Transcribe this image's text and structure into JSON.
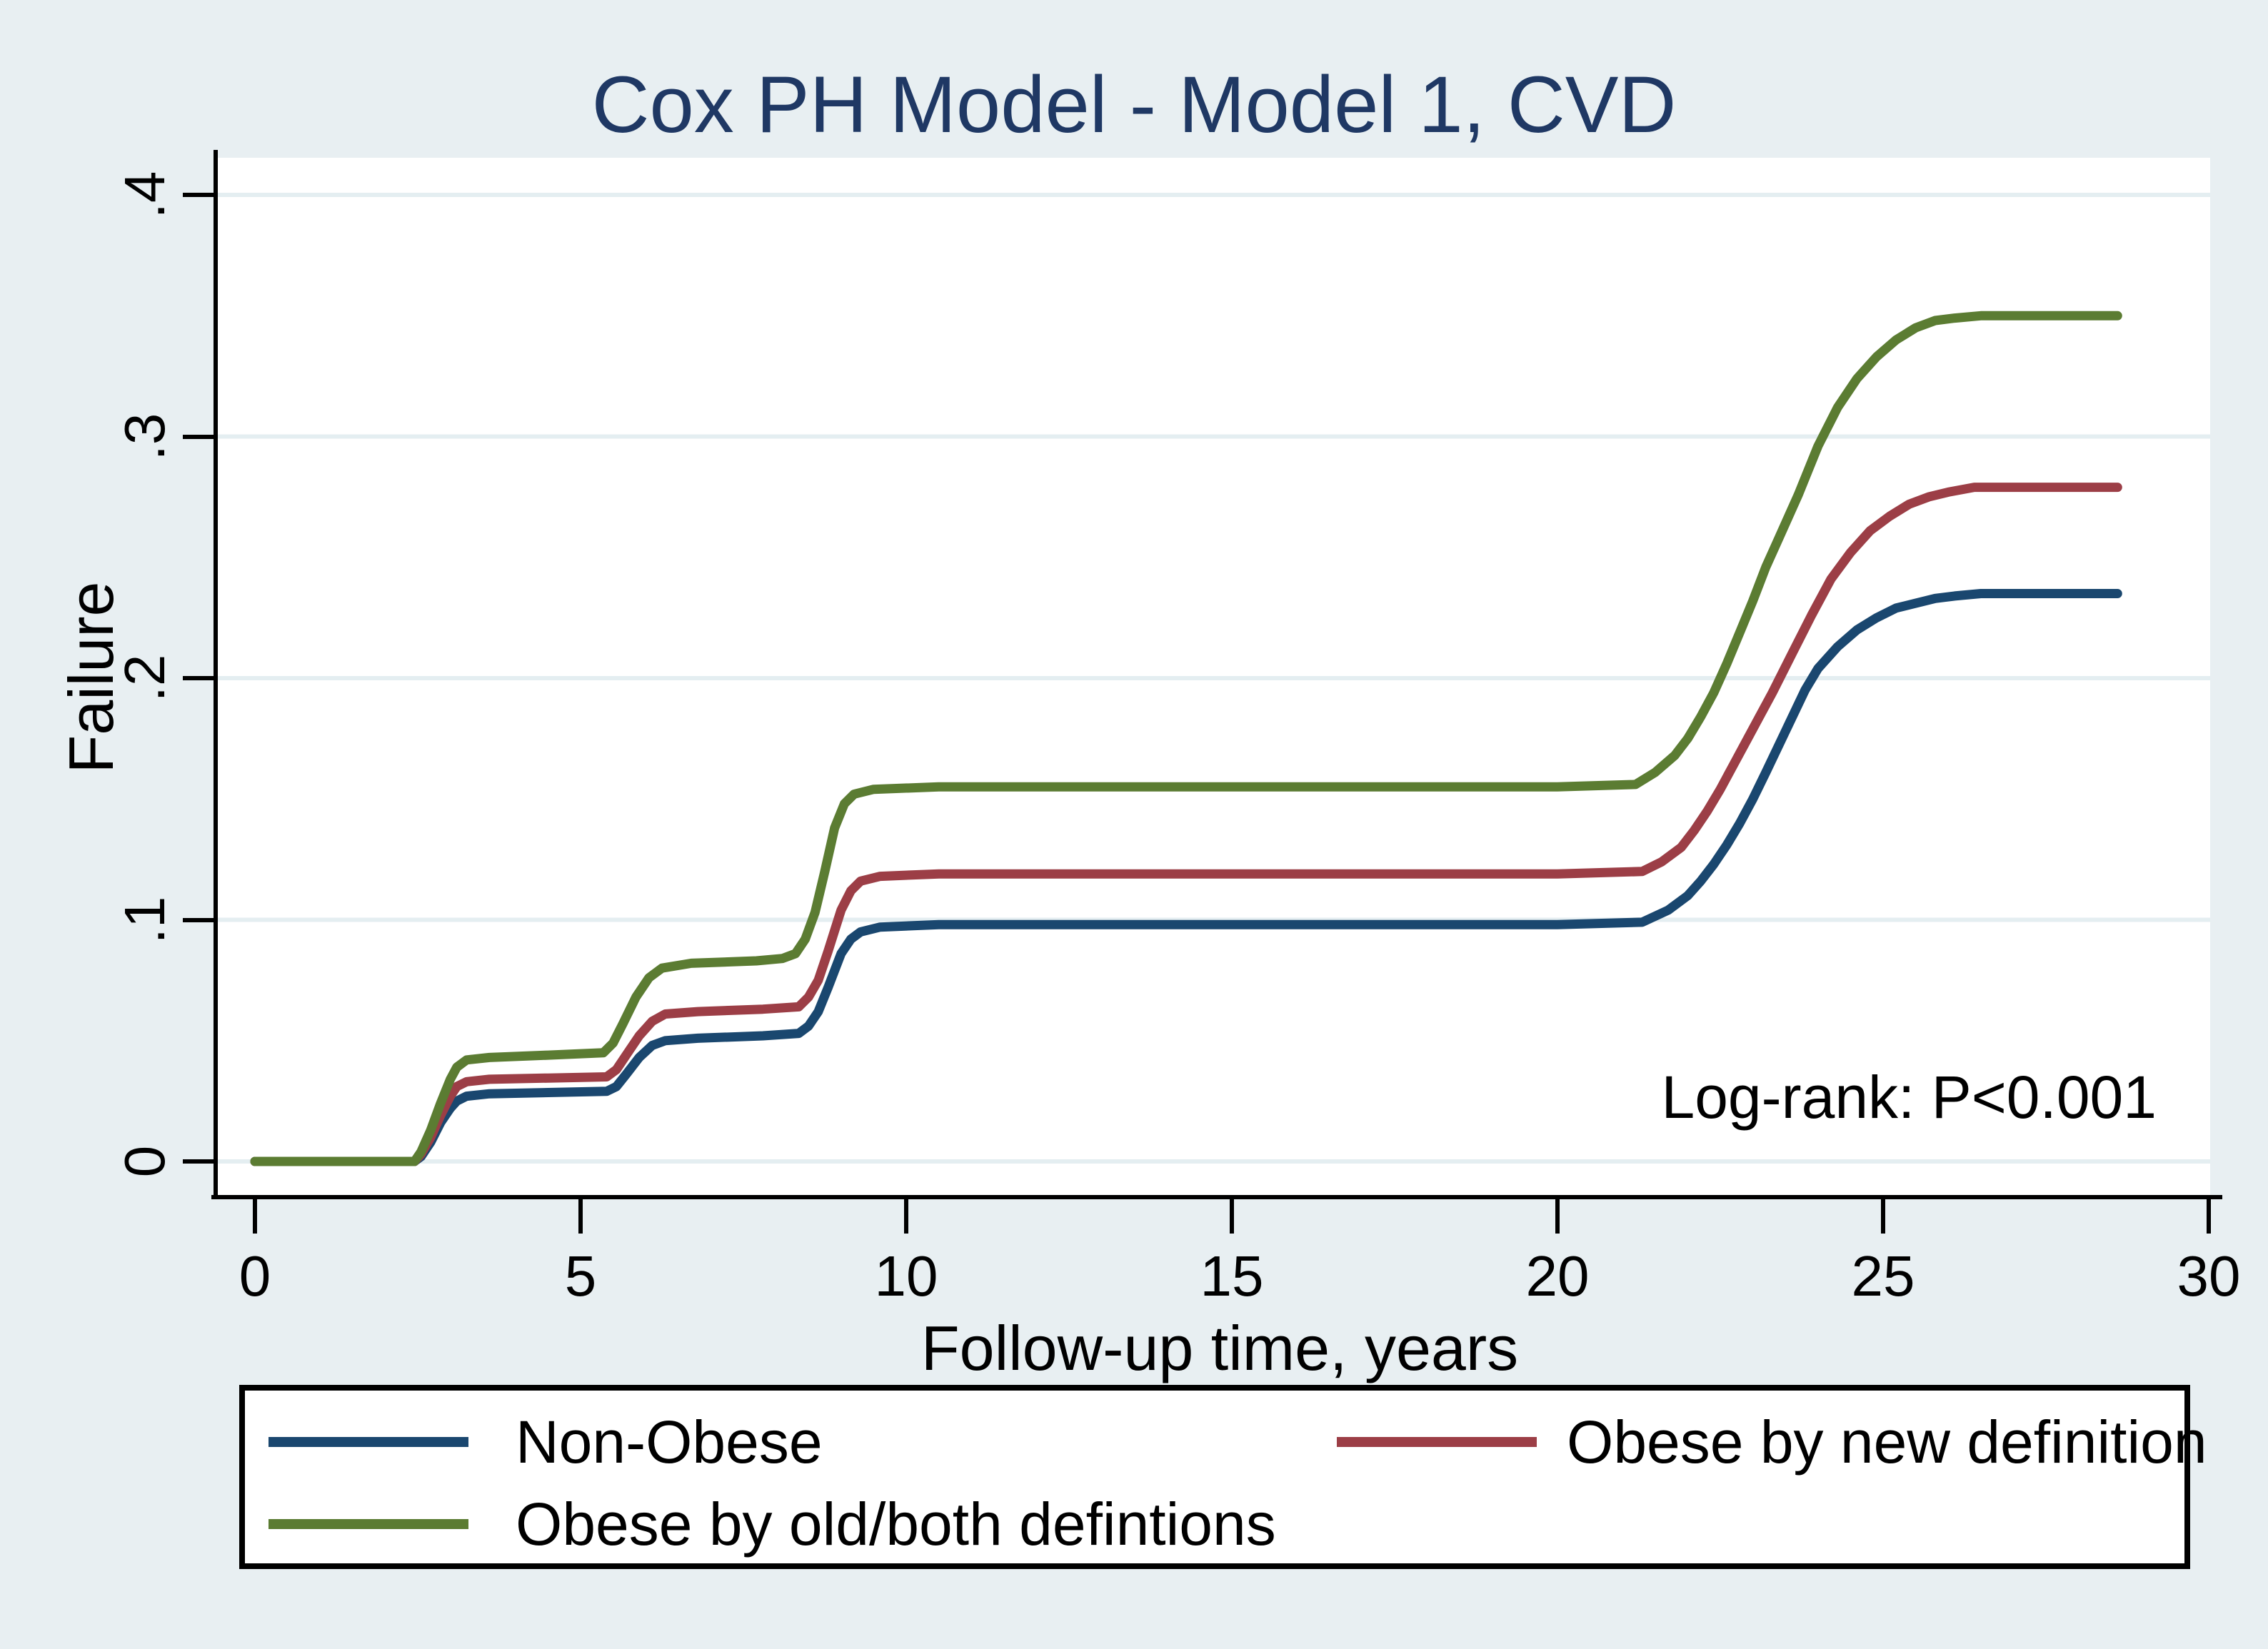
{
  "title": {
    "text": "Cox PH Model - Model 1, CVD",
    "color": "#1f3864"
  },
  "axes": {
    "y": {
      "title": "Failure",
      "tick_labels": [
        "0",
        ".1",
        ".2",
        ".3",
        ".4"
      ],
      "tick_values": [
        0,
        0.1,
        0.2,
        0.3,
        0.4
      ]
    },
    "x": {
      "title": "Follow-up time, years",
      "tick_labels": [
        "0",
        "5",
        "10",
        "15",
        "20",
        "25",
        "30"
      ],
      "tick_values": [
        0,
        5,
        10,
        15,
        20,
        25,
        30
      ]
    }
  },
  "annotation": {
    "text": "Log-rank: P<0.001"
  },
  "legend": {
    "items": [
      {
        "label": "Non-Obese",
        "color": "#1a476f"
      },
      {
        "label": "Obese by new definition",
        "color": "#9c3e46"
      },
      {
        "label": "Obese by old/both defintions",
        "color": "#5b7c32"
      }
    ]
  },
  "colors": {
    "background": "#e8eff2",
    "plot_background": "#ffffff",
    "gridline": "#e4eef1",
    "axis": "#000000",
    "title": "#1f3864"
  },
  "chart_data": {
    "type": "line",
    "title": "Cox PH Model - Model 1, CVD",
    "xlabel": "Follow-up time, years",
    "ylabel": "Failure",
    "xlim": [
      0,
      30
    ],
    "ylim": [
      0,
      0.4
    ],
    "grid": true,
    "legend_position": "bottom",
    "annotation": "Log-rank: P<0.001",
    "series": [
      {
        "name": "Non-Obese",
        "color": "#1a476f",
        "points": [
          [
            0,
            0
          ],
          [
            2.45,
            0
          ],
          [
            2.55,
            0.002
          ],
          [
            2.7,
            0.008
          ],
          [
            2.85,
            0.016
          ],
          [
            3.0,
            0.022
          ],
          [
            3.1,
            0.025
          ],
          [
            3.25,
            0.027
          ],
          [
            3.6,
            0.028
          ],
          [
            4.5,
            0.0285
          ],
          [
            5.4,
            0.029
          ],
          [
            5.55,
            0.031
          ],
          [
            5.7,
            0.036
          ],
          [
            5.9,
            0.043
          ],
          [
            6.1,
            0.048
          ],
          [
            6.3,
            0.05
          ],
          [
            6.8,
            0.051
          ],
          [
            7.8,
            0.052
          ],
          [
            8.35,
            0.053
          ],
          [
            8.5,
            0.056
          ],
          [
            8.65,
            0.062
          ],
          [
            8.8,
            0.072
          ],
          [
            9.0,
            0.086
          ],
          [
            9.15,
            0.092
          ],
          [
            9.3,
            0.095
          ],
          [
            9.6,
            0.097
          ],
          [
            10.5,
            0.098
          ],
          [
            15,
            0.098
          ],
          [
            20,
            0.098
          ],
          [
            21.3,
            0.099
          ],
          [
            21.7,
            0.104
          ],
          [
            22.0,
            0.11
          ],
          [
            22.2,
            0.116
          ],
          [
            22.4,
            0.123
          ],
          [
            22.6,
            0.131
          ],
          [
            22.8,
            0.14
          ],
          [
            23.0,
            0.15
          ],
          [
            23.2,
            0.161
          ],
          [
            23.5,
            0.178
          ],
          [
            23.8,
            0.195
          ],
          [
            24.0,
            0.204
          ],
          [
            24.3,
            0.213
          ],
          [
            24.6,
            0.22
          ],
          [
            24.9,
            0.225
          ],
          [
            25.2,
            0.229
          ],
          [
            25.5,
            0.231
          ],
          [
            25.8,
            0.233
          ],
          [
            26.1,
            0.234
          ],
          [
            26.5,
            0.235
          ],
          [
            28.6,
            0.235
          ]
        ]
      },
      {
        "name": "Obese by new definition",
        "color": "#9c3e46",
        "points": [
          [
            0,
            0
          ],
          [
            2.45,
            0
          ],
          [
            2.55,
            0.003
          ],
          [
            2.7,
            0.01
          ],
          [
            2.85,
            0.019
          ],
          [
            3.0,
            0.027
          ],
          [
            3.1,
            0.031
          ],
          [
            3.25,
            0.033
          ],
          [
            3.6,
            0.034
          ],
          [
            4.5,
            0.0345
          ],
          [
            5.4,
            0.035
          ],
          [
            5.55,
            0.038
          ],
          [
            5.7,
            0.044
          ],
          [
            5.9,
            0.052
          ],
          [
            6.1,
            0.058
          ],
          [
            6.3,
            0.061
          ],
          [
            6.8,
            0.062
          ],
          [
            7.8,
            0.063
          ],
          [
            8.35,
            0.064
          ],
          [
            8.5,
            0.068
          ],
          [
            8.65,
            0.075
          ],
          [
            8.8,
            0.087
          ],
          [
            9.0,
            0.104
          ],
          [
            9.15,
            0.112
          ],
          [
            9.3,
            0.116
          ],
          [
            9.6,
            0.118
          ],
          [
            10.5,
            0.119
          ],
          [
            15,
            0.119
          ],
          [
            20,
            0.119
          ],
          [
            21.3,
            0.12
          ],
          [
            21.6,
            0.124
          ],
          [
            21.9,
            0.13
          ],
          [
            22.1,
            0.137
          ],
          [
            22.3,
            0.145
          ],
          [
            22.5,
            0.154
          ],
          [
            22.7,
            0.164
          ],
          [
            22.9,
            0.174
          ],
          [
            23.1,
            0.184
          ],
          [
            23.3,
            0.194
          ],
          [
            23.6,
            0.21
          ],
          [
            23.9,
            0.226
          ],
          [
            24.2,
            0.241
          ],
          [
            24.5,
            0.252
          ],
          [
            24.8,
            0.261
          ],
          [
            25.1,
            0.267
          ],
          [
            25.4,
            0.272
          ],
          [
            25.7,
            0.275
          ],
          [
            26.0,
            0.277
          ],
          [
            26.4,
            0.279
          ],
          [
            28.6,
            0.279
          ]
        ]
      },
      {
        "name": "Obese by old/both defintions",
        "color": "#5b7c32",
        "points": [
          [
            0,
            0
          ],
          [
            2.45,
            0
          ],
          [
            2.55,
            0.004
          ],
          [
            2.7,
            0.013
          ],
          [
            2.85,
            0.024
          ],
          [
            3.0,
            0.034
          ],
          [
            3.1,
            0.039
          ],
          [
            3.25,
            0.042
          ],
          [
            3.6,
            0.043
          ],
          [
            4.5,
            0.044
          ],
          [
            5.35,
            0.045
          ],
          [
            5.5,
            0.049
          ],
          [
            5.65,
            0.057
          ],
          [
            5.85,
            0.068
          ],
          [
            6.05,
            0.076
          ],
          [
            6.25,
            0.08
          ],
          [
            6.7,
            0.082
          ],
          [
            7.7,
            0.083
          ],
          [
            8.1,
            0.084
          ],
          [
            8.3,
            0.086
          ],
          [
            8.45,
            0.092
          ],
          [
            8.6,
            0.103
          ],
          [
            8.75,
            0.12
          ],
          [
            8.9,
            0.138
          ],
          [
            9.05,
            0.148
          ],
          [
            9.2,
            0.152
          ],
          [
            9.5,
            0.154
          ],
          [
            10.5,
            0.155
          ],
          [
            15,
            0.155
          ],
          [
            20,
            0.155
          ],
          [
            21.2,
            0.156
          ],
          [
            21.5,
            0.161
          ],
          [
            21.8,
            0.168
          ],
          [
            22.0,
            0.175
          ],
          [
            22.2,
            0.184
          ],
          [
            22.4,
            0.194
          ],
          [
            22.6,
            0.206
          ],
          [
            22.8,
            0.219
          ],
          [
            23.0,
            0.232
          ],
          [
            23.2,
            0.246
          ],
          [
            23.4,
            0.258
          ],
          [
            23.7,
            0.276
          ],
          [
            24.0,
            0.296
          ],
          [
            24.3,
            0.312
          ],
          [
            24.6,
            0.324
          ],
          [
            24.9,
            0.333
          ],
          [
            25.2,
            0.34
          ],
          [
            25.5,
            0.345
          ],
          [
            25.8,
            0.348
          ],
          [
            26.1,
            0.349
          ],
          [
            26.5,
            0.35
          ],
          [
            28.6,
            0.35
          ]
        ]
      }
    ]
  }
}
